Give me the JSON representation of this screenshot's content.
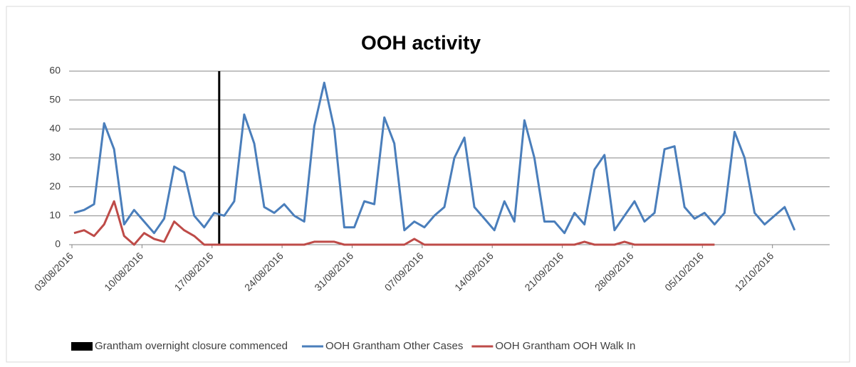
{
  "chart_data": {
    "type": "line",
    "title": "OOH activity",
    "categories": [
      "03/08/2016",
      null,
      null,
      null,
      null,
      null,
      null,
      "10/08/2016",
      null,
      null,
      null,
      null,
      null,
      null,
      "17/08/2016",
      null,
      null,
      null,
      null,
      null,
      null,
      "24/08/2016",
      null,
      null,
      null,
      null,
      null,
      null,
      "31/08/2016",
      null,
      null,
      null,
      null,
      null,
      null,
      "07/09/2016",
      null,
      null,
      null,
      null,
      null,
      null,
      "14/09/2016",
      null,
      null,
      null,
      null,
      null,
      null,
      "21/09/2016",
      null,
      null,
      null,
      null,
      null,
      null,
      "28/09/2016",
      null,
      null,
      null,
      null,
      null,
      null,
      "05/10/2016",
      null,
      null,
      null,
      null,
      null,
      null,
      "12/10/2016",
      null,
      null,
      null,
      null,
      null
    ],
    "marker": {
      "name": "Grantham overnight closure commenced",
      "color": "#000000",
      "at": "17/08/2016"
    },
    "series": [
      {
        "name": "OOH Grantham Other Cases",
        "color": "#4a7ebb",
        "values": [
          11,
          12,
          14,
          42,
          33,
          7,
          12,
          8,
          4,
          9,
          27,
          25,
          10,
          6,
          11,
          10,
          15,
          45,
          35,
          13,
          11,
          14,
          10,
          8,
          41,
          56,
          40,
          6,
          6,
          15,
          14,
          44,
          35,
          5,
          8,
          6,
          10,
          13,
          30,
          37,
          13,
          9,
          5,
          15,
          8,
          43,
          30,
          8,
          8,
          4,
          11,
          7,
          26,
          31,
          5,
          10,
          15,
          8,
          11,
          33,
          34,
          13,
          9,
          11,
          7,
          11,
          39,
          30,
          11,
          7,
          10,
          13,
          5,
          null,
          null,
          null
        ]
      },
      {
        "name": "OOH Grantham OOH Walk In",
        "color": "#be4b48",
        "values": [
          4,
          5,
          3,
          7,
          15,
          3,
          0,
          4,
          2,
          1,
          8,
          5,
          3,
          0,
          0,
          0,
          0,
          0,
          0,
          0,
          0,
          0,
          0,
          0,
          1,
          1,
          1,
          0,
          0,
          0,
          0,
          0,
          0,
          0,
          2,
          0,
          0,
          0,
          0,
          0,
          0,
          0,
          0,
          0,
          0,
          0,
          0,
          0,
          0,
          0,
          0,
          1,
          0,
          0,
          0,
          1,
          0,
          0,
          0,
          0,
          0,
          0,
          0,
          0,
          0,
          null,
          null,
          null,
          null,
          null,
          null,
          null,
          null,
          null,
          null,
          null
        ]
      }
    ],
    "ylim": [
      0,
      60
    ],
    "yticks": [
      0,
      10,
      20,
      30,
      40,
      50,
      60
    ],
    "grid": true
  }
}
